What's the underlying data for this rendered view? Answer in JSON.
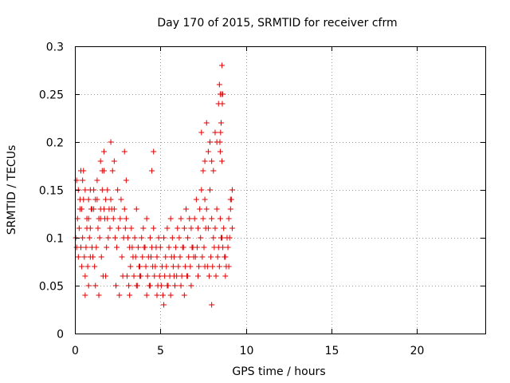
{
  "chart_data": {
    "type": "scatter",
    "title": "Day 170 of 2015, SRMTID for receiver cfrm",
    "xlabel": "GPS time / hours",
    "ylabel": "SRMTID / TECUs",
    "xlim": [
      0,
      24
    ],
    "ylim": [
      0,
      0.3
    ],
    "xticks": [
      0,
      5,
      10,
      15,
      20
    ],
    "yticks": [
      0,
      0.05,
      0.1,
      0.15,
      0.2,
      0.25,
      0.3
    ],
    "xtick_labels": [
      "0",
      "5",
      "10",
      "15",
      "20"
    ],
    "ytick_labels": [
      "0",
      "0.05",
      "0.1",
      "0.15",
      "0.2",
      "0.25",
      "0.3"
    ],
    "grid": true,
    "legend": false,
    "marker": "plus",
    "color": "#e00000",
    "series": [
      {
        "x": [
          0.05,
          0.1,
          0.15,
          0.2,
          0.25,
          0.3,
          0.35,
          0.4,
          0.45,
          0.5,
          0.55,
          0.6,
          0.65,
          0.7,
          0.75,
          0.8,
          0.85,
          0.9,
          0.95,
          1.0,
          0.1,
          0.2,
          0.3,
          0.4,
          0.5,
          0.6,
          0.7,
          0.8,
          0.9,
          1.0,
          1.1,
          1.2,
          1.3,
          1.4,
          1.5,
          1.6,
          1.7,
          1.8,
          1.9,
          2.0,
          1.05,
          1.15,
          1.25,
          1.35,
          1.45,
          1.55,
          1.65,
          1.75,
          1.85,
          1.95,
          2.05,
          2.15,
          2.25,
          2.35,
          2.45,
          2.55,
          2.65,
          2.75,
          2.85,
          2.95,
          3.0,
          3.1,
          3.2,
          3.3,
          3.4,
          3.5,
          3.6,
          3.7,
          3.8,
          3.9,
          4.0,
          4.1,
          4.2,
          4.3,
          4.4,
          4.5,
          4.6,
          4.7,
          4.8,
          4.9,
          3.05,
          3.15,
          3.25,
          3.35,
          3.45,
          3.55,
          3.65,
          3.75,
          3.85,
          3.95,
          4.05,
          4.15,
          4.25,
          4.35,
          4.45,
          4.55,
          4.65,
          4.75,
          4.85,
          4.95,
          5.0,
          5.1,
          5.2,
          5.3,
          5.4,
          5.5,
          5.6,
          5.7,
          5.8,
          5.9,
          6.0,
          6.1,
          6.2,
          6.3,
          6.4,
          6.5,
          6.6,
          6.7,
          6.8,
          6.9,
          5.05,
          5.15,
          5.25,
          5.35,
          5.45,
          5.55,
          5.65,
          5.75,
          5.85,
          5.95,
          6.05,
          6.15,
          6.25,
          6.35,
          6.45,
          6.55,
          6.65,
          6.75,
          6.85,
          6.95,
          7.0,
          7.1,
          7.2,
          7.3,
          7.4,
          7.5,
          7.6,
          7.7,
          7.8,
          7.9,
          8.0,
          8.1,
          8.2,
          8.3,
          8.4,
          8.5,
          8.6,
          8.7,
          8.8,
          8.9,
          7.05,
          7.15,
          7.25,
          7.35,
          7.45,
          7.55,
          7.65,
          7.75,
          7.85,
          7.95,
          8.05,
          8.15,
          8.25,
          8.35,
          8.45,
          8.55,
          8.65,
          8.75,
          8.85,
          8.95,
          9.0,
          9.05,
          9.1,
          9.15,
          9.2,
          0.35,
          0.45,
          1.5,
          1.6,
          1.7,
          2.1,
          2.2,
          2.3,
          2.9,
          3.0,
          4.5,
          4.6,
          7.4,
          7.5,
          7.6,
          7.7,
          7.8,
          7.9,
          8.0,
          8.1,
          8.2,
          8.3,
          8.4,
          8.45,
          8.5,
          8.55,
          8.6,
          8.65,
          8.5,
          8.55,
          8.6,
          8.62,
          8.58,
          8.52,
          8.48,
          0.6,
          0.8,
          1.2,
          1.4,
          1.8,
          2.4,
          2.6,
          2.8,
          3.2,
          3.6,
          3.8,
          4.2,
          4.4,
          4.8,
          5.2,
          5.4,
          5.6,
          5.8,
          6.2,
          6.4,
          6.6,
          6.8,
          7.2,
          7.6,
          8.0,
          8.8,
          9.0,
          9.1,
          9.2,
          0.9,
          1.1,
          1.3,
          1.5,
          1.7,
          1.9,
          2.1,
          2.3,
          2.5,
          2.7,
          2.9
        ],
        "y": [
          0.1,
          0.09,
          0.12,
          0.08,
          0.11,
          0.13,
          0.09,
          0.07,
          0.1,
          0.14,
          0.08,
          0.06,
          0.09,
          0.11,
          0.07,
          0.12,
          0.1,
          0.08,
          0.13,
          0.09,
          0.16,
          0.15,
          0.14,
          0.13,
          0.17,
          0.15,
          0.12,
          0.14,
          0.11,
          0.13,
          0.15,
          0.14,
          0.16,
          0.12,
          0.13,
          0.15,
          0.17,
          0.14,
          0.12,
          0.13,
          0.08,
          0.07,
          0.09,
          0.11,
          0.1,
          0.08,
          0.06,
          0.12,
          0.09,
          0.1,
          0.11,
          0.13,
          0.12,
          0.1,
          0.09,
          0.11,
          0.12,
          0.08,
          0.1,
          0.11,
          0.12,
          0.1,
          0.09,
          0.11,
          0.08,
          0.1,
          0.13,
          0.09,
          0.07,
          0.1,
          0.11,
          0.09,
          0.12,
          0.08,
          0.1,
          0.09,
          0.11,
          0.07,
          0.08,
          0.1,
          0.06,
          0.05,
          0.07,
          0.09,
          0.06,
          0.08,
          0.05,
          0.07,
          0.06,
          0.08,
          0.09,
          0.07,
          0.06,
          0.05,
          0.08,
          0.07,
          0.06,
          0.09,
          0.05,
          0.06,
          0.09,
          0.07,
          0.1,
          0.08,
          0.11,
          0.09,
          0.12,
          0.1,
          0.08,
          0.09,
          0.11,
          0.1,
          0.12,
          0.09,
          0.11,
          0.13,
          0.1,
          0.12,
          0.11,
          0.09,
          0.05,
          0.04,
          0.06,
          0.07,
          0.05,
          0.06,
          0.08,
          0.07,
          0.05,
          0.06,
          0.07,
          0.08,
          0.06,
          0.09,
          0.07,
          0.06,
          0.08,
          0.07,
          0.09,
          0.08,
          0.12,
          0.14,
          0.11,
          0.13,
          0.15,
          0.12,
          0.14,
          0.13,
          0.11,
          0.15,
          0.12,
          0.1,
          0.11,
          0.13,
          0.09,
          0.12,
          0.1,
          0.11,
          0.08,
          0.1,
          0.08,
          0.09,
          0.07,
          0.1,
          0.08,
          0.09,
          0.11,
          0.07,
          0.06,
          0.08,
          0.07,
          0.09,
          0.06,
          0.08,
          0.07,
          0.1,
          0.09,
          0.08,
          0.07,
          0.09,
          0.12,
          0.1,
          0.13,
          0.14,
          0.11,
          0.17,
          0.16,
          0.18,
          0.17,
          0.19,
          0.2,
          0.17,
          0.18,
          0.19,
          0.16,
          0.17,
          0.19,
          0.21,
          0.17,
          0.18,
          0.22,
          0.19,
          0.2,
          0.18,
          0.17,
          0.21,
          0.2,
          0.24,
          0.26,
          0.25,
          0.22,
          0.28,
          0.25,
          0.19,
          0.22,
          0.18,
          0.24,
          0.25,
          0.21,
          0.2,
          0.04,
          0.05,
          0.05,
          0.04,
          0.06,
          0.05,
          0.04,
          0.06,
          0.04,
          0.05,
          0.06,
          0.04,
          0.05,
          0.04,
          0.03,
          0.05,
          0.04,
          0.06,
          0.05,
          0.04,
          0.06,
          0.05,
          0.06,
          0.07,
          0.03,
          0.06,
          0.07,
          0.14,
          0.15,
          0.15,
          0.13,
          0.14,
          0.12,
          0.13,
          0.15,
          0.14,
          0.13,
          0.15,
          0.14,
          0.13
        ]
      }
    ]
  }
}
